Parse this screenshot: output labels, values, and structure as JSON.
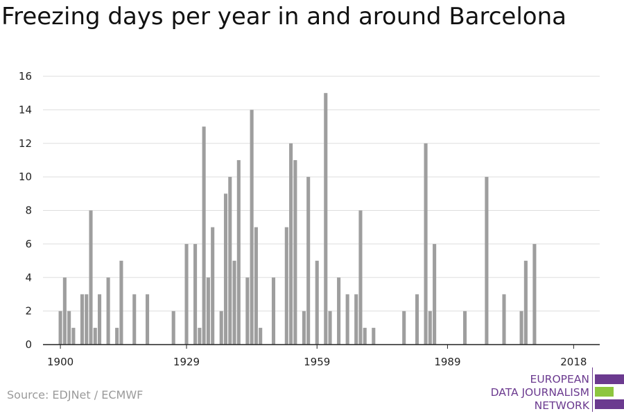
{
  "title": "Freezing days per year in and around Barcelona",
  "source": "Source: EDJNet / ECMWF",
  "logo": {
    "lines": [
      "EUROPEAN",
      "DATA JOURNALISM",
      "NETWORK"
    ],
    "colors": {
      "purple": "#6b3a8f",
      "green": "#8dc63f"
    }
  },
  "colors": {
    "bar": "#9e9e9e",
    "grid": "#dddddd",
    "axis": "#222222"
  },
  "chart_data": {
    "type": "bar",
    "title": "Freezing days per year in and around Barcelona",
    "xlabel": "",
    "ylabel": "",
    "ylim": [
      0,
      16
    ],
    "yticks": [
      0,
      2,
      4,
      6,
      8,
      10,
      12,
      14,
      16
    ],
    "xticks": [
      1900,
      1929,
      1959,
      1989,
      2018
    ],
    "xlim": [
      1896,
      2024
    ],
    "grid": true,
    "x": [
      1900,
      1901,
      1902,
      1903,
      1905,
      1906,
      1907,
      1908,
      1909,
      1911,
      1913,
      1914,
      1917,
      1920,
      1926,
      1929,
      1931,
      1932,
      1933,
      1934,
      1935,
      1937,
      1938,
      1939,
      1940,
      1941,
      1943,
      1944,
      1945,
      1946,
      1949,
      1952,
      1953,
      1954,
      1956,
      1957,
      1959,
      1961,
      1962,
      1964,
      1966,
      1968,
      1969,
      1970,
      1972,
      1979,
      1982,
      1984,
      1985,
      1986,
      1993,
      1998,
      2002,
      2006,
      2007,
      2009
    ],
    "values": [
      2,
      4,
      2,
      1,
      3,
      3,
      8,
      1,
      3,
      4,
      1,
      5,
      3,
      3,
      2,
      6,
      6,
      1,
      13,
      4,
      7,
      2,
      9,
      10,
      5,
      11,
      4,
      14,
      7,
      1,
      4,
      7,
      12,
      11,
      2,
      10,
      5,
      15,
      2,
      4,
      3,
      3,
      8,
      1,
      1,
      2,
      3,
      12,
      2,
      6,
      2,
      10,
      3,
      2,
      5,
      6
    ]
  }
}
